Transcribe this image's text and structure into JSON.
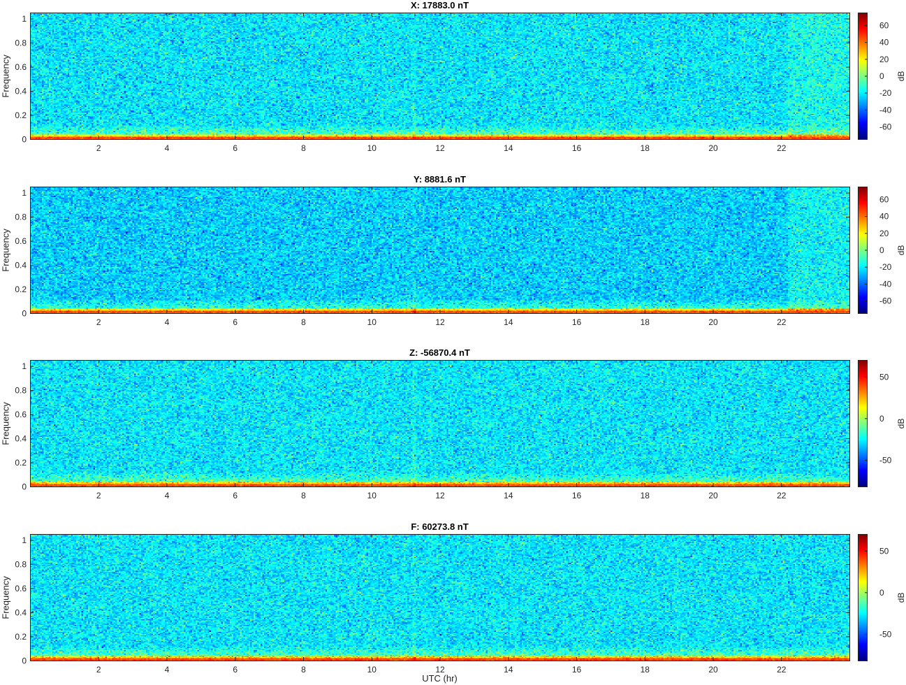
{
  "figure": {
    "xlabel": "UTC (hr)",
    "ylabel": "Frequency",
    "colorbar_unit": "dB",
    "colormap": "jet"
  },
  "chart_data": [
    {
      "type": "heatmap",
      "title": "X: 17883.0 nT",
      "xlabel": "",
      "ylabel": "Frequency",
      "xlim": [
        0,
        24
      ],
      "ylim": [
        0,
        1.05
      ],
      "x_ticks": [
        2,
        4,
        6,
        8,
        10,
        12,
        14,
        16,
        18,
        20,
        22
      ],
      "y_ticks": [
        0,
        0.2,
        0.4,
        0.6,
        0.8,
        1
      ],
      "colorbar": {
        "label": "dB",
        "range": [
          -75,
          75
        ],
        "ticks": [
          -60,
          -40,
          -20,
          0,
          20,
          40,
          60
        ]
      },
      "background_db": -22,
      "low_band_db": 45,
      "late_shift_hr": 22.2,
      "late_shift_db": 6
    },
    {
      "type": "heatmap",
      "title": "Y: 8881.6 nT",
      "xlabel": "",
      "ylabel": "Frequency",
      "xlim": [
        0,
        24
      ],
      "ylim": [
        0,
        1.05
      ],
      "x_ticks": [
        2,
        4,
        6,
        8,
        10,
        12,
        14,
        16,
        18,
        20,
        22
      ],
      "y_ticks": [
        0,
        0.2,
        0.4,
        0.6,
        0.8,
        1
      ],
      "colorbar": {
        "label": "dB",
        "range": [
          -75,
          75
        ],
        "ticks": [
          -60,
          -40,
          -20,
          0,
          20,
          40,
          60
        ]
      },
      "background_db": -26,
      "low_band_db": 45,
      "late_shift_hr": 22.2,
      "late_shift_db": 7
    },
    {
      "type": "heatmap",
      "title": "Z: -56870.4 nT",
      "xlabel": "",
      "ylabel": "Frequency",
      "xlim": [
        0,
        24
      ],
      "ylim": [
        0,
        1.05
      ],
      "x_ticks": [
        2,
        4,
        6,
        8,
        10,
        12,
        14,
        16,
        18,
        20,
        22
      ],
      "y_ticks": [
        0,
        0.2,
        0.4,
        0.6,
        0.8,
        1
      ],
      "colorbar": {
        "label": "dB",
        "range": [
          -82,
          70
        ],
        "ticks": [
          -50,
          0,
          50
        ]
      },
      "background_db": -28,
      "low_band_db": 40,
      "late_shift_hr": 22.2,
      "late_shift_db": 0
    },
    {
      "type": "heatmap",
      "title": "F: 60273.8 nT",
      "xlabel": "UTC (hr)",
      "ylabel": "Frequency",
      "xlim": [
        0,
        24
      ],
      "ylim": [
        0,
        1.05
      ],
      "x_ticks": [
        2,
        4,
        6,
        8,
        10,
        12,
        14,
        16,
        18,
        20,
        22
      ],
      "y_ticks": [
        0,
        0.2,
        0.4,
        0.6,
        0.8,
        1
      ],
      "colorbar": {
        "label": "dB",
        "range": [
          -82,
          70
        ],
        "ticks": [
          -50,
          0,
          50
        ]
      },
      "background_db": -28,
      "low_band_db": 40,
      "late_shift_hr": 22.2,
      "late_shift_db": 0
    }
  ]
}
